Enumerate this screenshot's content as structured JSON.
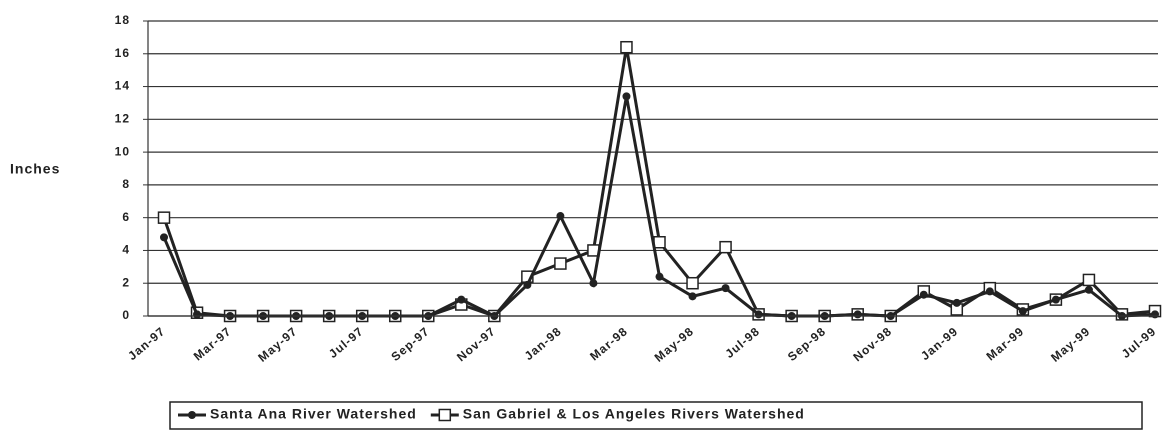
{
  "chart_data": {
    "type": "line",
    "y_label": "Inches",
    "categories": [
      "Jan-97",
      null,
      "Mar-97",
      null,
      "May-97",
      null,
      "Jul-97",
      null,
      "Sep-97",
      null,
      "Nov-97",
      null,
      "Jan-98",
      null,
      "Mar-98",
      null,
      "May-98",
      null,
      "Jul-98",
      null,
      "Sep-98",
      null,
      "Nov-98",
      null,
      "Jan-99",
      null,
      "Mar-99",
      null,
      "May-99",
      null,
      "Jul-99"
    ],
    "series": [
      {
        "name": "Santa Ana River Watershed",
        "color": "#222222",
        "marker": "circle",
        "values": [
          4.8,
          0.1,
          0,
          0,
          0,
          0,
          0,
          0,
          0,
          1.0,
          0,
          1.9,
          6.1,
          2.0,
          13.4,
          2.4,
          1.2,
          1.7,
          0.1,
          0,
          0,
          0.1,
          0,
          1.3,
          0.8,
          1.5,
          0.3,
          1.0,
          1.6,
          0,
          0.1
        ]
      },
      {
        "name": "San Gabriel & Los Angeles Rivers Watershed",
        "color": "#222222",
        "marker": "square",
        "values": [
          6.0,
          0.2,
          0,
          0,
          0,
          0,
          0,
          0,
          0,
          0.7,
          0,
          2.4,
          3.2,
          4.0,
          16.4,
          4.5,
          2.0,
          4.2,
          0.1,
          0,
          0,
          0.1,
          0,
          1.5,
          0.4,
          1.7,
          0.4,
          1.0,
          2.2,
          0.1,
          0.3
        ]
      }
    ],
    "ylim": [
      0,
      18
    ],
    "yticks": [
      0,
      2,
      4,
      6,
      8,
      10,
      12,
      14,
      16,
      18
    ],
    "grid": true
  }
}
